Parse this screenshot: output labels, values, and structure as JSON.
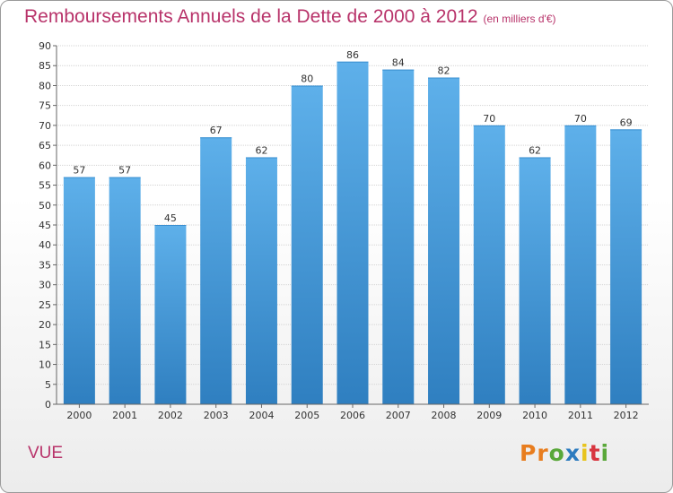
{
  "header": {
    "title": "Remboursements Annuels de la Dette de 2000 à 2012",
    "unit": "(en milliers d'€)"
  },
  "footer": {
    "commune": "VUE",
    "logo": "Proxiti",
    "logo_colors": [
      "#e87d1e",
      "#e87d1e",
      "#5aa83a",
      "#2c7bbf",
      "#e8c41e",
      "#d8353f",
      "#5aa83a"
    ]
  },
  "colors": {
    "bar_top": "#5eb0ea",
    "bar_bottom": "#2f7fc0",
    "title": "#b8336a"
  },
  "chart_data": {
    "type": "bar",
    "categories": [
      "2000",
      "2001",
      "2002",
      "2003",
      "2004",
      "2005",
      "2006",
      "2007",
      "2008",
      "2009",
      "2010",
      "2011",
      "2012"
    ],
    "values": [
      57,
      57,
      45,
      67,
      62,
      80,
      86,
      84,
      82,
      70,
      62,
      70,
      69
    ],
    "ylim": [
      0,
      90
    ],
    "yticks": [
      0,
      5,
      10,
      15,
      20,
      25,
      30,
      35,
      40,
      45,
      50,
      55,
      60,
      65,
      70,
      75,
      80,
      85,
      90
    ],
    "grid": true,
    "data_labels": true
  }
}
